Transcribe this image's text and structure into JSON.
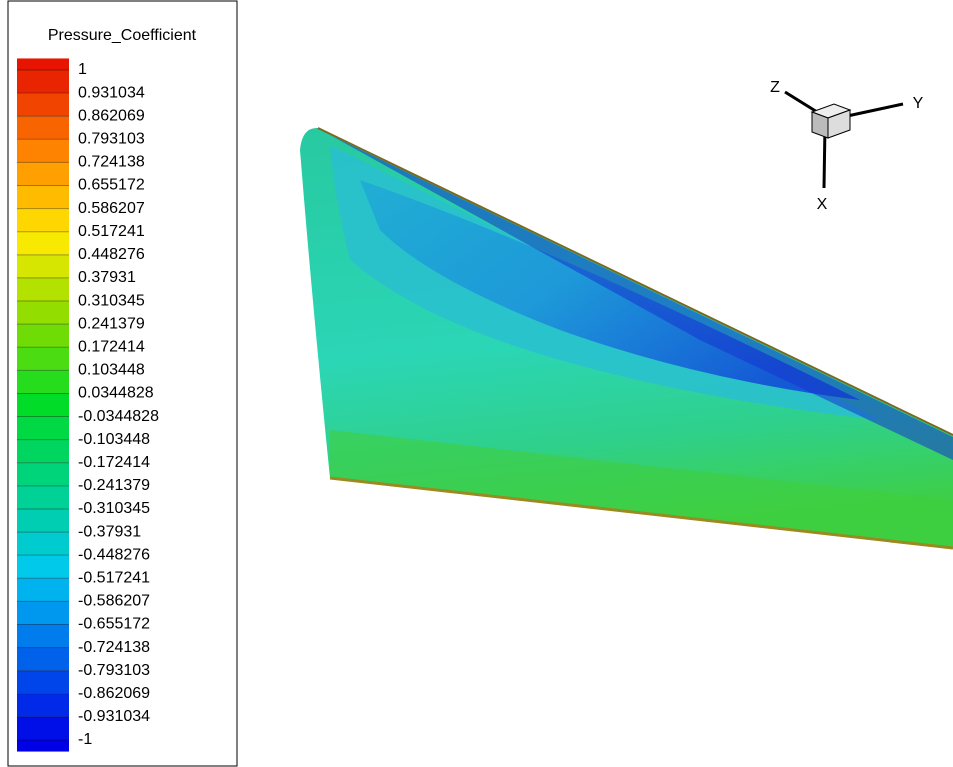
{
  "legend": {
    "title": "Pressure_Coefficient",
    "levels": [
      "1",
      "0.931034",
      "0.862069",
      "0.793103",
      "0.724138",
      "0.655172",
      "0.586207",
      "0.517241",
      "0.448276",
      "0.37931",
      "0.310345",
      "0.241379",
      "0.172414",
      "0.103448",
      "0.0344828",
      "-0.0344828",
      "-0.103448",
      "-0.172414",
      "-0.241379",
      "-0.310345",
      "-0.37931",
      "-0.448276",
      "-0.517241",
      "-0.586207",
      "-0.655172",
      "-0.724138",
      "-0.793103",
      "-0.862069",
      "-0.931034",
      "-1"
    ]
  },
  "axes": {
    "z": "Z",
    "y": "Y",
    "x": "X"
  }
}
